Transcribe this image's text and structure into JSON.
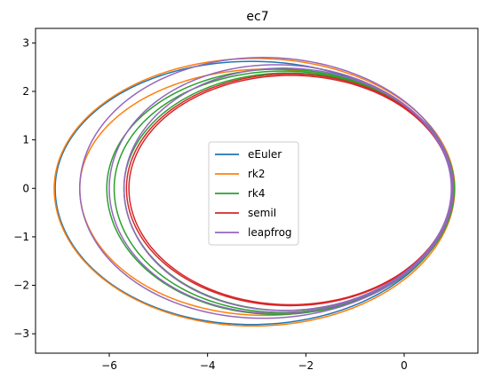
{
  "chart_data": {
    "type": "line",
    "title": "ec7",
    "xlabel": "",
    "ylabel": "",
    "xlim": [
      -7.5,
      1.5
    ],
    "ylim": [
      -3.4,
      3.3
    ],
    "xticks": [
      -6,
      -4,
      -2,
      0
    ],
    "xtick_labels": [
      "−6",
      "−4",
      "−2",
      "0"
    ],
    "yticks": [
      -3,
      -2,
      -1,
      0,
      1,
      2,
      3
    ],
    "ytick_labels": [
      "−3",
      "−2",
      "−1",
      "0",
      "1",
      "2",
      "3"
    ],
    "grid": false,
    "legend_position": "center",
    "series": [
      {
        "name": "eEuler",
        "color": "#1f77b4",
        "orbits": [
          {
            "x_min": -7.1,
            "x_max": 1.0,
            "y_top": 2.62,
            "y_bottom": -2.81,
            "x_top": -3.2,
            "x_bottom": -3.2,
            "start_deg": 0,
            "sweep_deg": 360
          }
        ]
      },
      {
        "name": "rk2",
        "color": "#ff7f0e",
        "orbits": [
          {
            "x_min": -7.12,
            "x_max": 1.03,
            "y_top": 2.68,
            "y_bottom": -2.84,
            "x_top": -3.0,
            "x_bottom": -3.1,
            "start_deg": 0,
            "sweep_deg": 360
          },
          {
            "x_min": -6.6,
            "x_max": 1.02,
            "y_top": 2.46,
            "y_bottom": -2.62,
            "x_top": -2.8,
            "x_bottom": -2.9,
            "start_deg": 0,
            "sweep_deg": 360
          }
        ]
      },
      {
        "name": "rk4",
        "color": "#2ca02c",
        "orbits": [
          {
            "x_min": -6.05,
            "x_max": 1.02,
            "y_top": 2.46,
            "y_bottom": -2.6,
            "x_top": -2.6,
            "x_bottom": -2.7,
            "start_deg": 0,
            "sweep_deg": 360
          },
          {
            "x_min": -5.9,
            "x_max": 1.0,
            "y_top": 2.42,
            "y_bottom": -2.56,
            "x_top": -2.5,
            "x_bottom": -2.6,
            "start_deg": 0,
            "sweep_deg": 360
          },
          {
            "x_min": -5.7,
            "x_max": 1.0,
            "y_top": 2.38,
            "y_bottom": -2.52,
            "x_top": -2.4,
            "x_bottom": -2.5,
            "start_deg": 0,
            "sweep_deg": 360
          }
        ]
      },
      {
        "name": "semiI",
        "color": "#d62728",
        "orbits": [
          {
            "x_min": -5.65,
            "x_max": 0.98,
            "y_top": 2.36,
            "y_bottom": -2.42,
            "x_top": -2.3,
            "x_bottom": -2.3,
            "start_deg": 0,
            "sweep_deg": 360
          },
          {
            "x_min": -5.6,
            "x_max": 0.97,
            "y_top": 2.33,
            "y_bottom": -2.4,
            "x_top": -2.3,
            "x_bottom": -2.3,
            "start_deg": 0,
            "sweep_deg": 360
          }
        ]
      },
      {
        "name": "leapfrog",
        "color": "#9467bd",
        "orbits": [
          {
            "x_min": -6.6,
            "x_max": 1.0,
            "y_top": 2.7,
            "y_bottom": -2.68,
            "x_top": -3.0,
            "x_bottom": -3.0,
            "start_deg": 0,
            "sweep_deg": 360
          },
          {
            "x_min": -6.0,
            "x_max": 0.98,
            "y_top": 2.55,
            "y_bottom": -2.58,
            "x_top": -2.8,
            "x_bottom": -2.8,
            "start_deg": 0,
            "sweep_deg": 360
          },
          {
            "x_min": -5.7,
            "x_max": 0.96,
            "y_top": 2.48,
            "y_bottom": -2.52,
            "x_top": -2.6,
            "x_bottom": -2.6,
            "start_deg": 0,
            "sweep_deg": 360
          }
        ]
      }
    ]
  }
}
